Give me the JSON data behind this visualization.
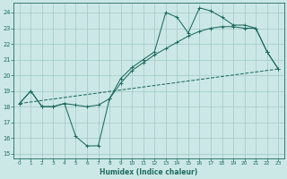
{
  "xlabel": "Humidex (Indice chaleur)",
  "bg_color": "#cce8e6",
  "grid_color": "#a0c8c4",
  "line_color": "#1e6b60",
  "xlim": [
    -0.5,
    23.5
  ],
  "ylim": [
    14.7,
    24.6
  ],
  "yticks": [
    15,
    16,
    17,
    18,
    19,
    20,
    21,
    22,
    23,
    24
  ],
  "xticks": [
    0,
    1,
    2,
    3,
    4,
    5,
    6,
    7,
    8,
    9,
    10,
    11,
    12,
    13,
    14,
    15,
    16,
    17,
    18,
    19,
    20,
    21,
    22,
    23
  ],
  "line1_x": [
    0,
    1,
    2,
    3,
    4,
    5,
    6,
    7,
    8,
    9,
    10,
    11,
    12,
    13,
    14,
    15,
    16,
    17,
    18,
    19,
    20,
    21,
    22,
    23
  ],
  "line1_y": [
    18.2,
    19.0,
    18.0,
    18.0,
    18.2,
    16.1,
    15.5,
    15.5,
    18.5,
    19.8,
    20.5,
    21.0,
    21.5,
    24.0,
    23.7,
    22.7,
    24.3,
    24.1,
    23.7,
    23.2,
    23.2,
    23.0,
    21.5,
    20.4
  ],
  "line2_x": [
    0,
    1,
    2,
    3,
    4,
    5,
    6,
    7,
    8,
    9,
    10,
    11,
    12,
    13,
    14,
    15,
    16,
    17,
    18,
    19,
    20,
    21,
    22,
    23
  ],
  "line2_y": [
    18.2,
    19.0,
    18.0,
    18.0,
    18.2,
    18.1,
    18.0,
    18.1,
    18.5,
    19.5,
    20.3,
    20.8,
    21.3,
    21.7,
    22.1,
    22.5,
    22.8,
    23.0,
    23.1,
    23.1,
    23.0,
    23.0,
    21.5,
    20.4
  ],
  "line3_x": [
    0,
    23
  ],
  "line3_y": [
    18.2,
    20.4
  ]
}
